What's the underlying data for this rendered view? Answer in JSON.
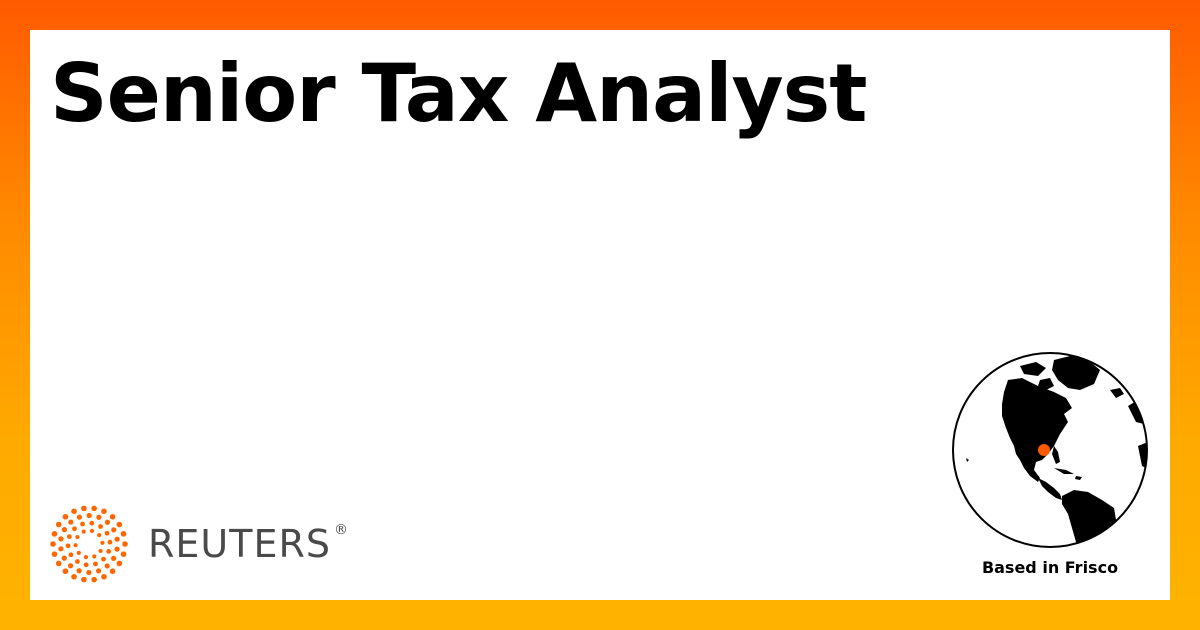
{
  "job": {
    "title": "Senior Tax Analyst"
  },
  "brand": {
    "name": "REUTERS",
    "registered_mark": "®",
    "logo_color": "#ff6600",
    "text_color": "#4a4a4a"
  },
  "location": {
    "caption": "Based in Frisco",
    "marker_color": "#ff5a00"
  },
  "icons": [
    "reuters-dots-logo-icon",
    "globe-icon",
    "location-marker-icon"
  ],
  "theme": {
    "gradient_top": "#ff5a00",
    "gradient_bottom": "#ffb300",
    "card_background": "#ffffff"
  }
}
